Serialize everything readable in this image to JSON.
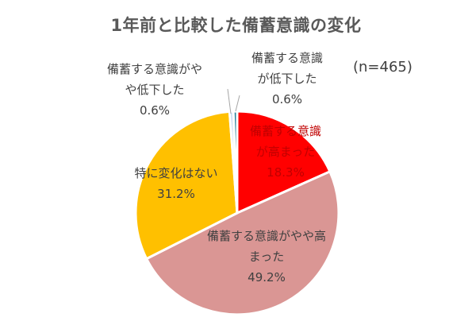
{
  "chart_data": {
    "type": "pie",
    "title": "1年前と比較した備蓄意識の変化",
    "note": "(n=465)",
    "start_angle_deg": 0,
    "direction": "clockwise",
    "slices": [
      {
        "label_lines": [
          "備蓄する意識",
          "が高まった"
        ],
        "value": 18.3,
        "value_text": "18.3%",
        "color": "#FF0000",
        "label_color": "#C00000"
      },
      {
        "label_lines": [
          "備蓄する意識がやや高",
          "まった"
        ],
        "value": 49.2,
        "value_text": "49.2%",
        "color": "#DA9694",
        "label_color": "#404040"
      },
      {
        "label_lines": [
          "特に変化はない"
        ],
        "value": 31.2,
        "value_text": "31.2%",
        "color": "#FFC000",
        "label_color": "#404040"
      },
      {
        "label_lines": [
          "備蓄する意識がや",
          "や低下した"
        ],
        "value": 0.6,
        "value_text": "0.6%",
        "color": "#C5D9F1",
        "label_color": "#404040"
      },
      {
        "label_lines": [
          "備蓄する意識",
          "が低下した"
        ],
        "value": 0.6,
        "value_text": "0.6%",
        "color": "#31859C",
        "label_color": "#404040"
      }
    ]
  }
}
